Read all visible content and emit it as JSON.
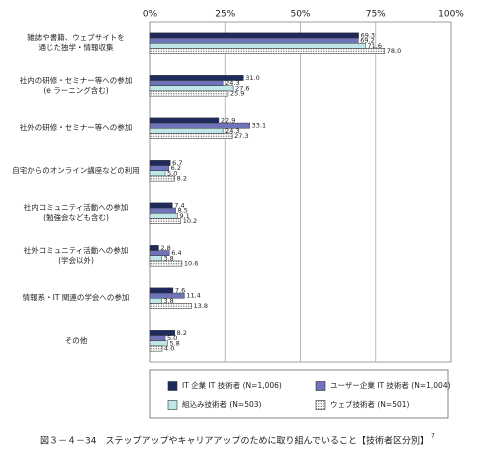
{
  "chart_data": {
    "type": "hbar",
    "title": "図３－４－34　ステップアップやキャリアアップのために取り組んでいること【技術者区分別】",
    "title_note": "7",
    "categories": [
      "雑誌や書籍、ウェブサイトを\n通じた独学・情報収集",
      "社内の研修・セミナー等への参加\n(e ラーニング含む)",
      "社外の研修・セミナー等への参加",
      "自宅からのオンライン講座などの利用",
      "社内コミュニティ活動への参加\n(勉強会なども含む)",
      "社外コミュニティ活動への参加\n(学会以外)",
      "情報系・IT 関連の学会への参加",
      "その他"
    ],
    "series": [
      {
        "name": "IT 企業 IT 技術者 (N=1,006)",
        "color": "#1f2a5c",
        "values": [
          69.3,
          31.0,
          22.9,
          6.7,
          7.4,
          2.8,
          7.6,
          8.2
        ],
        "value_labels": [
          "69.3",
          "31.0",
          "22.9",
          "6.7",
          "7.4",
          "2.8",
          "7.6",
          "8.2"
        ]
      },
      {
        "name": "ユーザー企業 IT 技術者 (N=1,004)",
        "color": "#6f74b8",
        "values": [
          69.2,
          24.3,
          33.1,
          6.2,
          8.5,
          6.4,
          11.4,
          5.0
        ],
        "value_labels": [
          "69.2",
          "24.3",
          "33.1",
          "6.2",
          "8.5",
          "6.4",
          "11.4",
          "5.0"
        ]
      },
      {
        "name": "組込み技術者 (N=503)",
        "color": "#bfe6e8",
        "values": [
          71.6,
          27.6,
          24.3,
          5.0,
          9.1,
          3.8,
          3.8,
          5.8
        ],
        "value_labels": [
          "71.6",
          "27.6",
          "24.3",
          "5.0",
          "9.1",
          "3.8",
          "3.8",
          "5.8"
        ]
      },
      {
        "name": "ウェブ技術者 (N=501)",
        "color": "#ffffff",
        "pattern": "dots",
        "values": [
          78.0,
          25.9,
          27.3,
          8.2,
          10.2,
          10.6,
          13.8,
          4.0
        ],
        "value_labels": [
          "78.0",
          "25.9",
          "27.3",
          "8.2",
          "10.2",
          "10.6",
          "13.8",
          "4.0"
        ]
      }
    ],
    "xlim": [
      0,
      100
    ],
    "xticks": [
      {
        "value": 0,
        "label": "0%"
      },
      {
        "value": 25,
        "label": "25%"
      },
      {
        "value": 50,
        "label": "50%"
      },
      {
        "value": 75,
        "label": "75%"
      },
      {
        "value": 100,
        "label": "100%"
      }
    ],
    "grid": true,
    "legend": "bottom"
  }
}
